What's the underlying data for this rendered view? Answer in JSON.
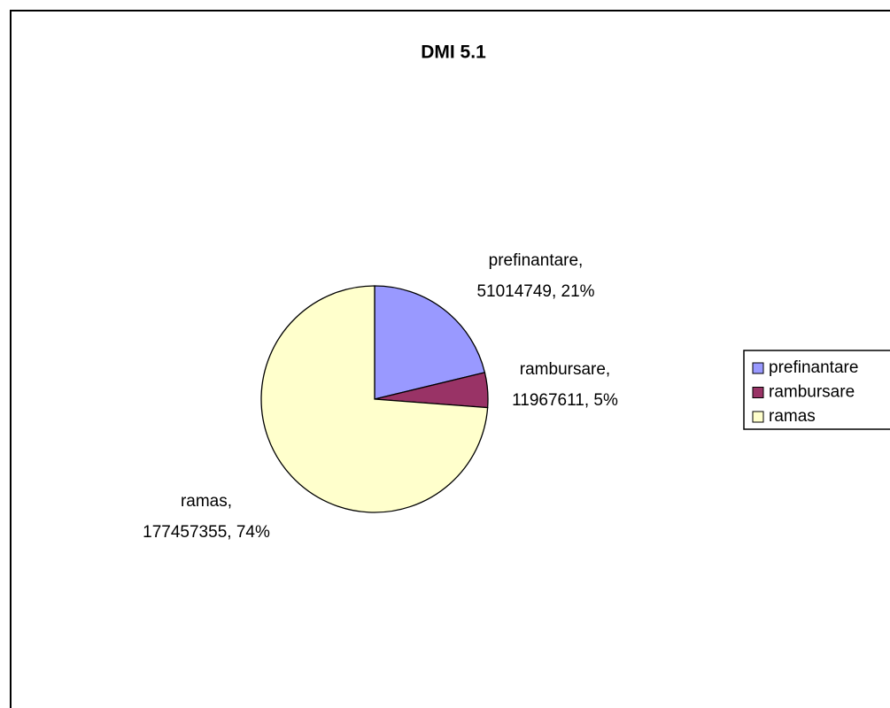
{
  "chart_data": {
    "type": "pie",
    "title": "DMI 5.1",
    "categories": [
      "prefinantare",
      "rambursare",
      "ramas"
    ],
    "values": [
      51014749,
      11967611,
      177457355
    ],
    "value_labels": [
      [
        "prefinantare,",
        "51014749, 21%"
      ],
      [
        "rambursare,",
        "11967611, 5%"
      ],
      [
        "ramas,",
        "177457355, 74%"
      ]
    ],
    "colors": [
      "#9999ff",
      "#993366",
      "#ffffcc"
    ],
    "legend": "right"
  }
}
